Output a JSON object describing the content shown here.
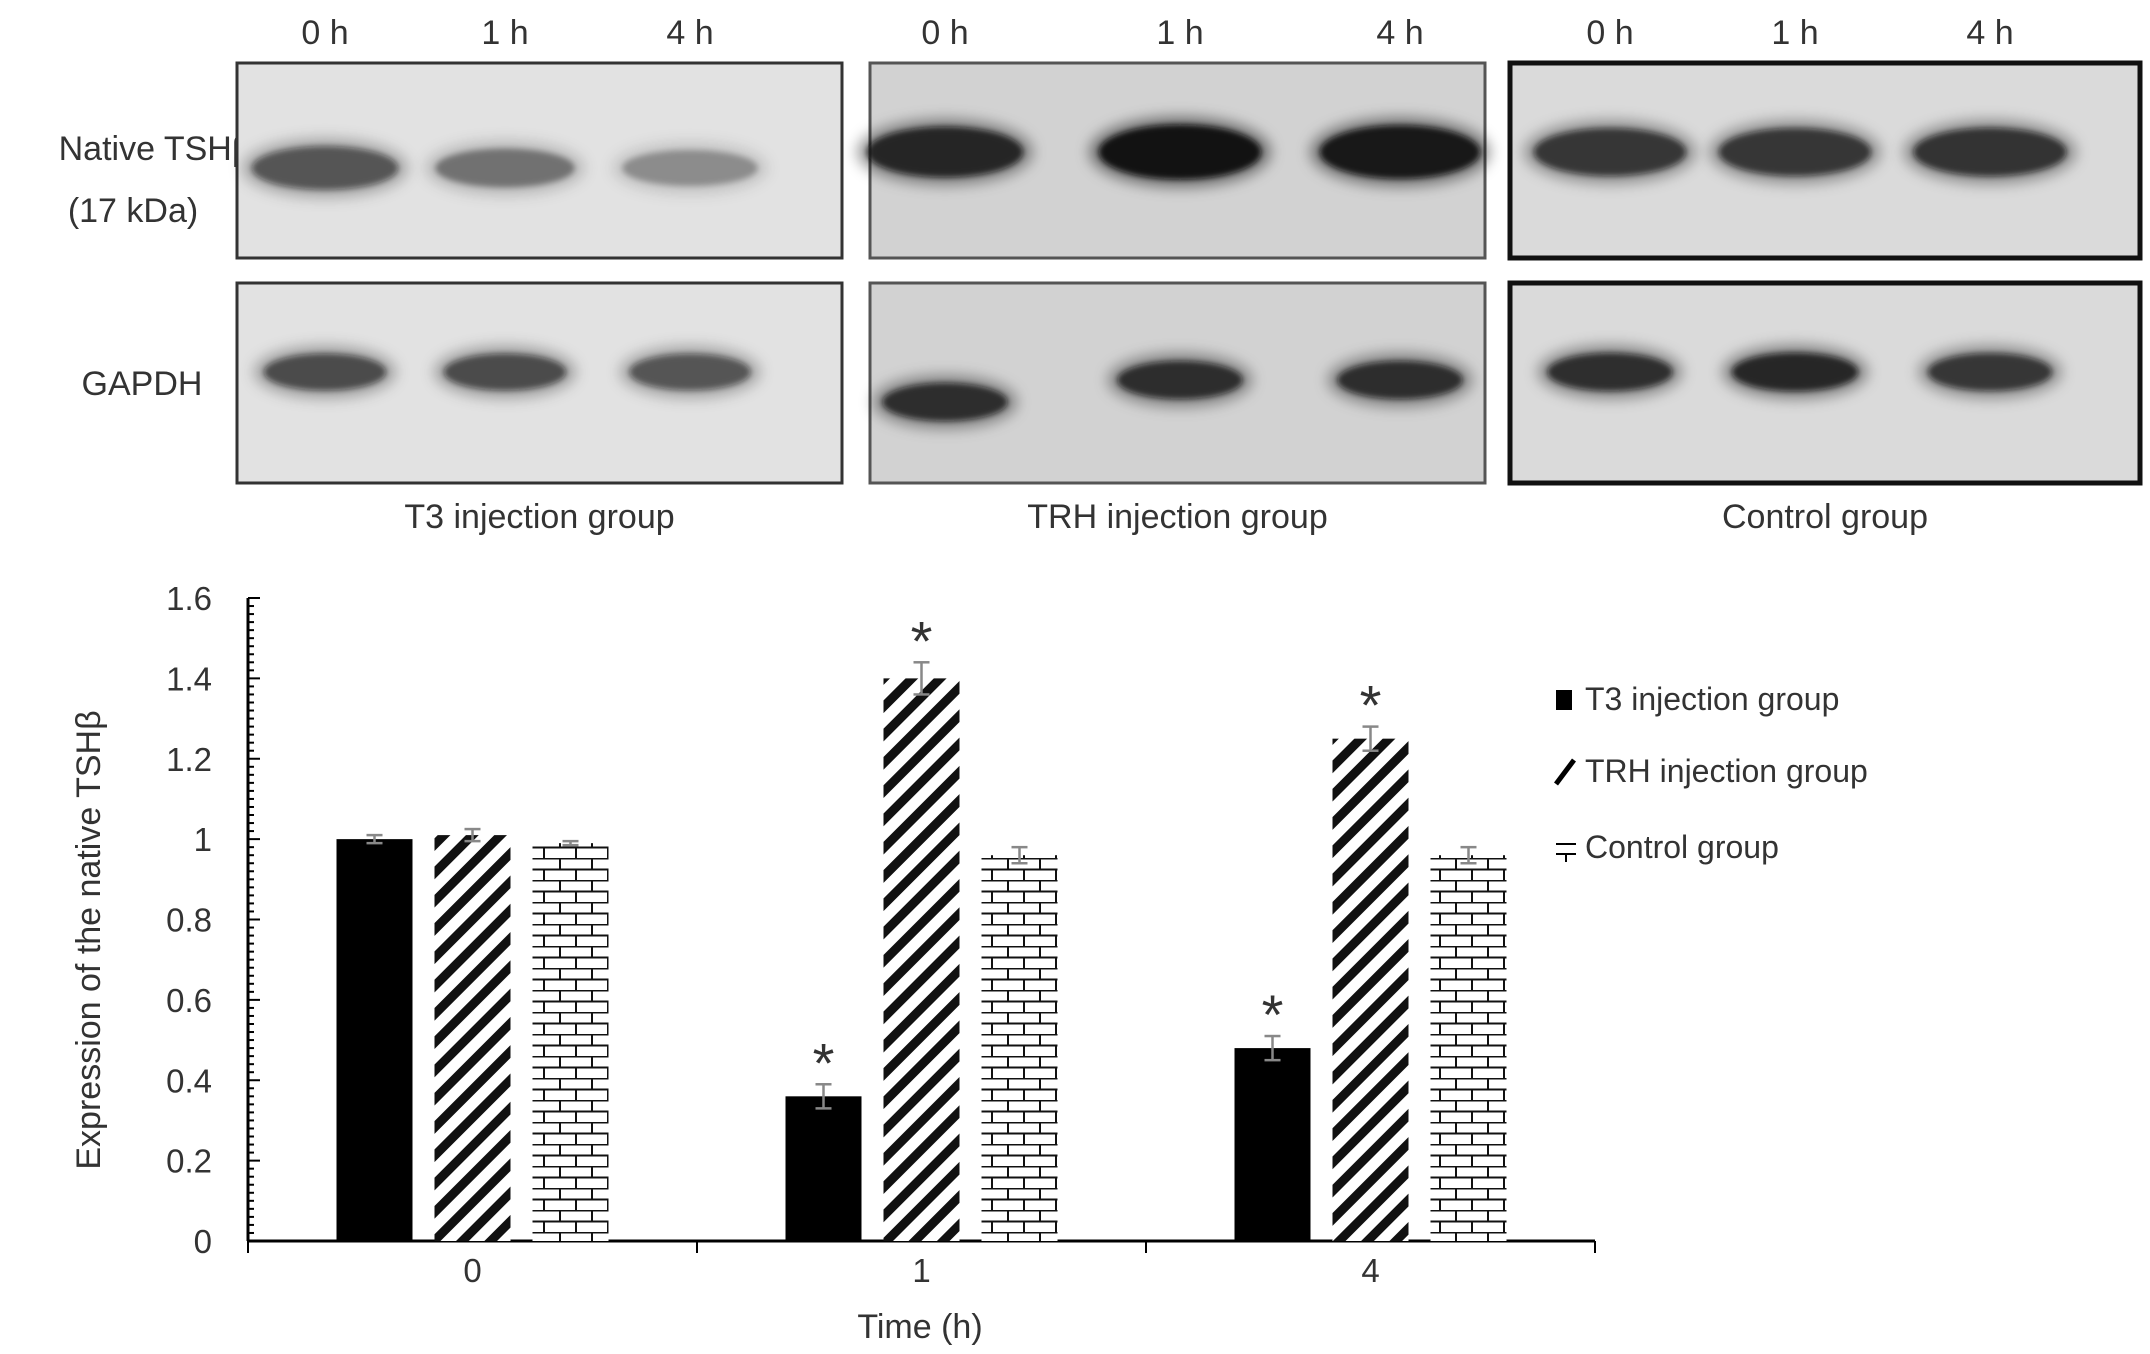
{
  "blot": {
    "row_labels": [
      {
        "line1": "Native TSHβ",
        "line2": "(17 kDa)"
      },
      {
        "line1": "GAPDH"
      }
    ],
    "panels": [
      {
        "caption": "T3 injection group",
        "lanes": [
          "0 h",
          "1 h",
          "4 h"
        ],
        "tsh_band_intensity": [
          0.55,
          0.38,
          0.28
        ],
        "gapdh_band_intensity": [
          0.6,
          0.6,
          0.55
        ],
        "border": "#333333",
        "background": "#e2e2e2"
      },
      {
        "caption": "TRH injection group",
        "lanes": [
          "0 h",
          "1 h",
          "4 h"
        ],
        "tsh_band_intensity": [
          0.8,
          0.95,
          0.9
        ],
        "gapdh_band_intensity": [
          0.75,
          0.75,
          0.75
        ],
        "border": "#555555",
        "background": "#d2d2d2"
      },
      {
        "caption": "Control group",
        "lanes": [
          "0 h",
          "1 h",
          "4 h"
        ],
        "tsh_band_intensity": [
          0.7,
          0.7,
          0.72
        ],
        "gapdh_band_intensity": [
          0.75,
          0.8,
          0.7
        ],
        "border": "#111111",
        "background": "#dadada"
      }
    ]
  },
  "chart_data": {
    "type": "bar",
    "categories": [
      "0",
      "1",
      "4"
    ],
    "xlabel": "Time (h)",
    "ylabel": "Expression of the native TSHβ",
    "ylim": [
      0,
      1.6
    ],
    "yticks": [
      "0",
      "0.2",
      "0.4",
      "0.6",
      "0.8",
      "1",
      "1.2",
      "1.4",
      "1.6"
    ],
    "legend_position": "right",
    "grid": false,
    "series": [
      {
        "name": "T3 injection group",
        "fill": "solid",
        "color": "#000000",
        "values": [
          1.0,
          0.36,
          0.48
        ],
        "errors": [
          0.01,
          0.03,
          0.03
        ],
        "significant": [
          false,
          true,
          true
        ]
      },
      {
        "name": "TRH injection group",
        "fill": "diagonal-stripes",
        "color": "#000000",
        "values": [
          1.01,
          1.4,
          1.25
        ],
        "errors": [
          0.015,
          0.04,
          0.03
        ],
        "significant": [
          false,
          true,
          true
        ]
      },
      {
        "name": "Control group",
        "fill": "brick",
        "color": "#000000",
        "values": [
          0.99,
          0.96,
          0.96
        ],
        "errors": [
          0.005,
          0.02,
          0.02
        ],
        "significant": [
          false,
          false,
          false
        ]
      }
    ],
    "significance_marker": "*"
  }
}
